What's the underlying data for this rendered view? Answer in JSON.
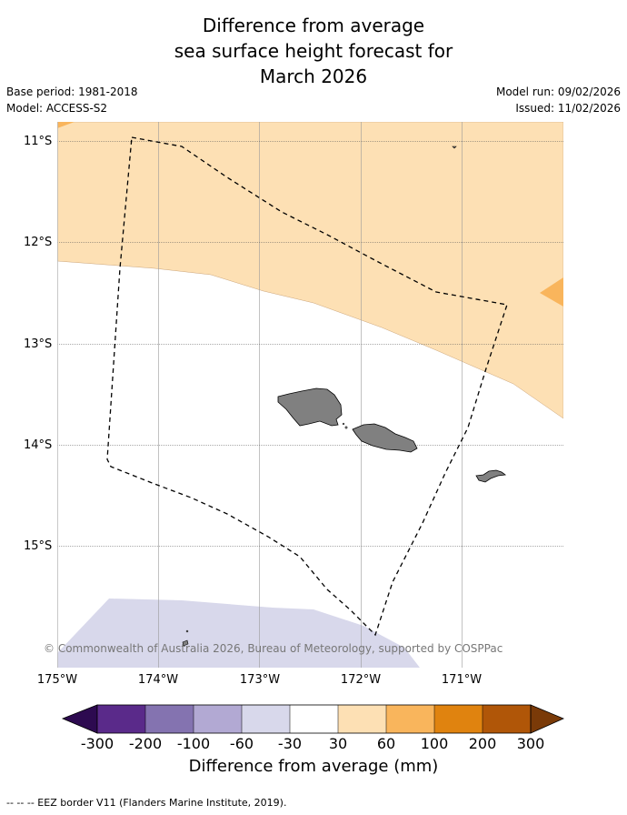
{
  "title": {
    "line1": "Difference from average",
    "line2": "sea surface height forecast for",
    "line3": "March 2026"
  },
  "meta": {
    "base_period": "Base period: 1981-2018",
    "model": "Model: ACCESS-S2",
    "model_run": "Model run: 09/02/2026",
    "issued": "Issued: 11/02/2026"
  },
  "axes": {
    "lat_labels": [
      "11°S",
      "12°S",
      "13°S",
      "14°S",
      "15°S"
    ],
    "lon_labels": [
      "175°W",
      "174°W",
      "173°W",
      "172°W",
      "171°W"
    ]
  },
  "copyright": "© Commonwealth of Australia 2026, Bureau of Meteorology, supported by COSPPac",
  "colorbar": {
    "ticks": [
      "-300",
      "-200",
      "-100",
      "-60",
      "-30",
      "30",
      "60",
      "100",
      "200",
      "300"
    ],
    "colors": [
      "#2d0a50",
      "#5a2a8a",
      "#8473b0",
      "#b2a9d3",
      "#d8d8eb",
      "#ffffff",
      "#fde0b4",
      "#f9b55c",
      "#e0830f",
      "#b05608",
      "#7a3a08"
    ],
    "title": "Difference from average (mm)"
  },
  "footnote": "--  --  -- EEZ border V11 (Flanders Marine Institute, 2019).",
  "colors": {
    "land": "#808080",
    "light_orange": "#fde0b4",
    "orange": "#f9b55c",
    "light_purple": "#d8d8eb"
  }
}
